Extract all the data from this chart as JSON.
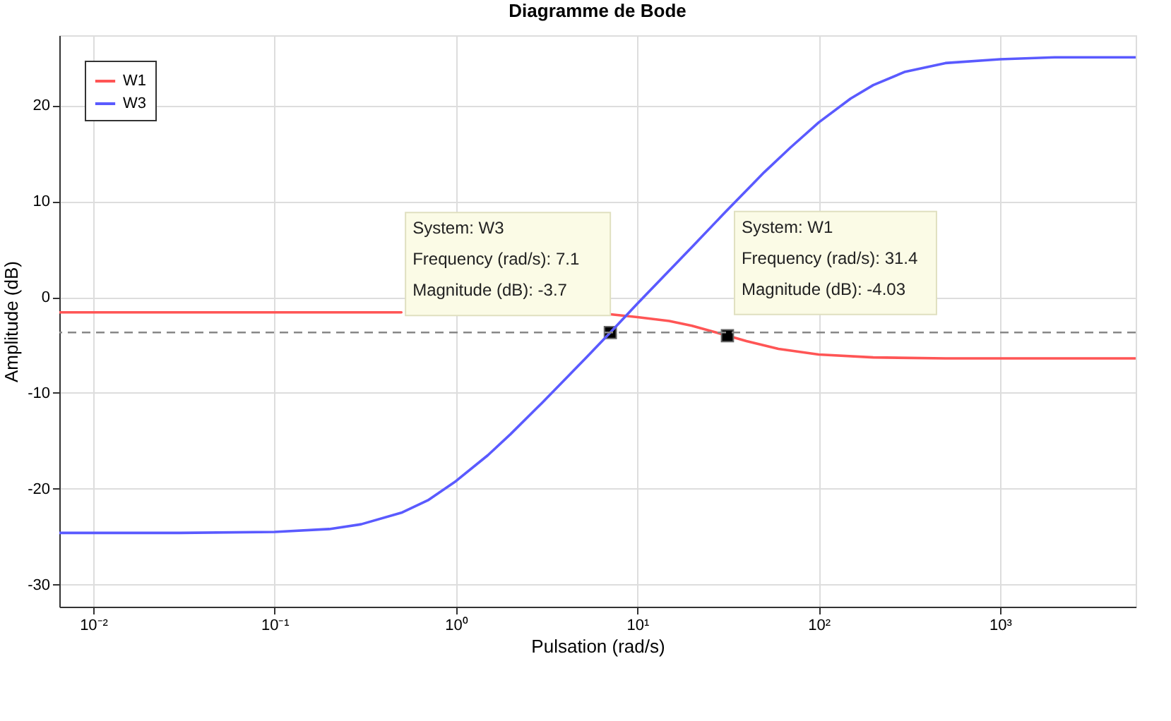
{
  "chart_data": {
    "type": "line",
    "title": "Diagramme de Bode",
    "xlabel": "Pulsation  (rad/s)",
    "ylabel": "Amplitude (dB)",
    "log": "x",
    "grid": true,
    "legend": "top left",
    "line_style": "solid",
    "marker": "none",
    "xlim": [
      0.0065,
      5600
    ],
    "ylim": [
      -32.3,
      27.3
    ],
    "xticks": [
      {
        "value": 0.01,
        "label": "10⁻²"
      },
      {
        "value": 0.1,
        "label": "10⁻¹"
      },
      {
        "value": 1,
        "label": "10⁰"
      },
      {
        "value": 10,
        "label": "10¹"
      },
      {
        "value": 100,
        "label": "10²"
      },
      {
        "value": 1000,
        "label": "10³"
      }
    ],
    "yticks": [
      -30,
      -20,
      -10,
      0,
      10,
      20
    ],
    "series": [
      {
        "name": "W1",
        "color": "#ff5555",
        "x": [
          0.0065,
          0.1,
          0.5,
          1,
          3,
          5,
          7.1,
          10,
          15,
          20,
          31.4,
          40,
          60,
          100,
          200,
          500,
          1000,
          5600
        ],
        "values": [
          -1.6,
          -1.6,
          -1.6,
          null,
          null,
          null,
          -1.8,
          -2.1,
          -2.5,
          -3.0,
          -4.03,
          -4.6,
          -5.4,
          -6.0,
          -6.3,
          -6.4,
          -6.4,
          -6.4
        ]
      },
      {
        "type": "scatter",
        "color": "#000000",
        "marker": "square",
        "x": [
          7.1,
          31.4
        ],
        "values": [
          -3.7,
          -4.03
        ]
      },
      {
        "name": "W3",
        "color": "#5a5aff",
        "x": [
          0.0065,
          0.01,
          0.03,
          0.1,
          0.2,
          0.3,
          0.5,
          0.7,
          1,
          1.5,
          2,
          3,
          5,
          7.1,
          10,
          20,
          30,
          50,
          70,
          100,
          150,
          200,
          300,
          500,
          1000,
          2000,
          5600
        ],
        "values": [
          -24.6,
          -24.6,
          -24.6,
          -24.5,
          -24.2,
          -23.7,
          -22.5,
          -21.2,
          -19.2,
          -16.5,
          -14.3,
          -11.0,
          -6.7,
          -3.7,
          -0.7,
          5.2,
          8.7,
          13.0,
          15.6,
          18.2,
          20.7,
          22.1,
          23.5,
          24.4,
          24.8,
          25.0,
          25.0
        ]
      }
    ],
    "ref_lines": [
      {
        "axis": "y",
        "value": -3.7,
        "color": "#888888",
        "line_style": "dashed"
      }
    ],
    "annotations": [
      {
        "text": "System: W3\nFrequency (rad/s): 7.1\nMagnitude (dB): -3.7",
        "x": 7.1,
        "y": -3.7
      },
      {
        "text": "System: W1\nFrequency (rad/s): 31.4\nMagnitude (dB): -4.03",
        "x": 31.4,
        "y": -4.03
      }
    ]
  }
}
